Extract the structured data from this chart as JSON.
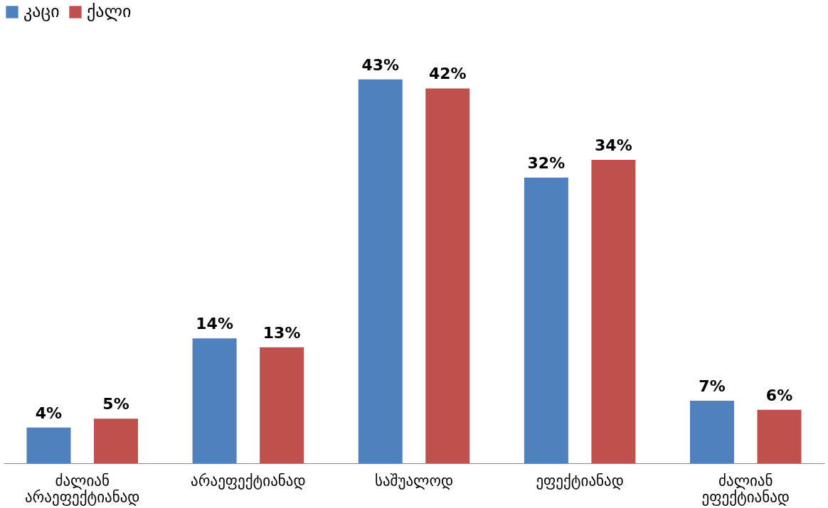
{
  "chart_data": {
    "type": "bar",
    "categories": [
      "ძალიან არაეფექტიანად",
      "არაეფექტიანად",
      "საშუალოდ",
      "ეფექტიანად",
      "ძალიან ეფექტიანად"
    ],
    "series": [
      {
        "name": "კაცი",
        "color": "#4f81bd",
        "values": [
          4,
          14,
          43,
          32,
          7
        ],
        "value_labels": [
          "4%",
          "14%",
          "43%",
          "32%",
          "7%"
        ]
      },
      {
        "name": "ქალი",
        "color": "#c0504d",
        "values": [
          5,
          13,
          42,
          34,
          6
        ],
        "value_labels": [
          "5%",
          "13%",
          "42%",
          "34%",
          "6%"
        ]
      }
    ],
    "legend": "top",
    "grid": false
  }
}
